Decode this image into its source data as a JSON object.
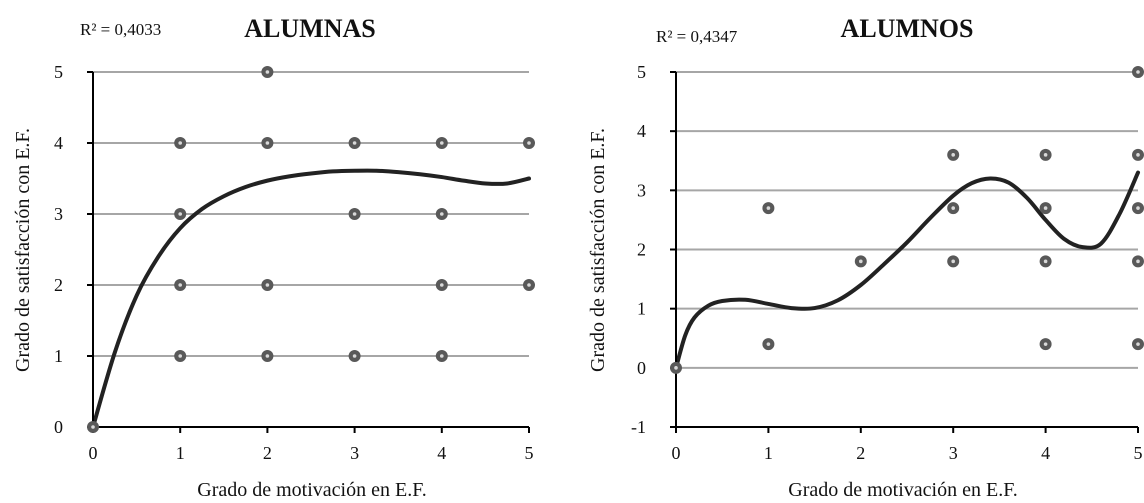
{
  "colors": {
    "grid": "#a6a6a6",
    "axis": "#000000",
    "point_fill": "#595959",
    "point_ring": "#d9d9d9",
    "trend": "#222222"
  },
  "chart_data": [
    {
      "type": "scatter",
      "title": "ALUMNAS",
      "annotation": "R² = 0,4033",
      "xlabel": "Grado de motivación en E.F.",
      "ylabel": "Grado de satisfacción con E.F.",
      "xlim": [
        0,
        5
      ],
      "ylim": [
        0,
        5
      ],
      "x_ticks": [
        "0",
        "1",
        "2",
        "3",
        "4",
        "5"
      ],
      "y_ticks": [
        "0",
        "1",
        "2",
        "3",
        "4",
        "5"
      ],
      "grid": true,
      "points": [
        [
          0,
          0
        ],
        [
          1,
          1
        ],
        [
          1,
          2
        ],
        [
          1,
          3
        ],
        [
          1,
          4
        ],
        [
          2,
          1
        ],
        [
          2,
          2
        ],
        [
          2,
          4
        ],
        [
          2,
          5
        ],
        [
          3,
          1
        ],
        [
          3,
          3
        ],
        [
          3,
          4
        ],
        [
          4,
          1
        ],
        [
          4,
          2
        ],
        [
          4,
          3
        ],
        [
          4,
          4
        ],
        [
          5,
          2
        ],
        [
          5,
          4
        ]
      ],
      "trendline": [
        [
          0,
          0
        ],
        [
          0.25,
          1.05
        ],
        [
          0.5,
          1.85
        ],
        [
          0.75,
          2.4
        ],
        [
          1,
          2.8
        ],
        [
          1.25,
          3.07
        ],
        [
          1.5,
          3.25
        ],
        [
          1.75,
          3.38
        ],
        [
          2,
          3.47
        ],
        [
          2.25,
          3.53
        ],
        [
          2.5,
          3.57
        ],
        [
          2.75,
          3.6
        ],
        [
          3,
          3.61
        ],
        [
          3.25,
          3.61
        ],
        [
          3.5,
          3.59
        ],
        [
          3.75,
          3.56
        ],
        [
          4,
          3.52
        ],
        [
          4.25,
          3.47
        ],
        [
          4.5,
          3.43
        ],
        [
          4.75,
          3.43
        ],
        [
          5,
          3.5
        ]
      ]
    },
    {
      "type": "scatter",
      "title": "ALUMNOS",
      "annotation": "R² = 0,4347",
      "xlabel": "Grado de motivación en E.F.",
      "ylabel": "Grado de satisfacción con E.F.",
      "xlim": [
        0,
        5
      ],
      "ylim": [
        -1,
        5
      ],
      "x_ticks": [
        "0",
        "1",
        "2",
        "3",
        "4",
        "5"
      ],
      "y_ticks": [
        "-1",
        "0",
        "1",
        "2",
        "3",
        "4",
        "5"
      ],
      "grid": true,
      "points": [
        [
          0,
          0
        ],
        [
          1,
          0.4
        ],
        [
          1,
          2.7
        ],
        [
          2,
          1.8
        ],
        [
          3,
          1.8
        ],
        [
          3,
          2.7
        ],
        [
          3,
          3.6
        ],
        [
          4,
          0.4
        ],
        [
          4,
          1.8
        ],
        [
          4,
          2.7
        ],
        [
          4,
          3.6
        ],
        [
          5,
          0.4
        ],
        [
          5,
          1.8
        ],
        [
          5,
          2.7
        ],
        [
          5,
          3.6
        ],
        [
          5,
          5
        ]
      ],
      "trendline": [
        [
          0,
          0
        ],
        [
          0.1,
          0.55
        ],
        [
          0.2,
          0.85
        ],
        [
          0.35,
          1.05
        ],
        [
          0.5,
          1.13
        ],
        [
          0.75,
          1.15
        ],
        [
          1,
          1.08
        ],
        [
          1.25,
          1.01
        ],
        [
          1.5,
          1.01
        ],
        [
          1.75,
          1.14
        ],
        [
          2,
          1.4
        ],
        [
          2.25,
          1.75
        ],
        [
          2.5,
          2.12
        ],
        [
          2.75,
          2.53
        ],
        [
          3,
          2.91
        ],
        [
          3.2,
          3.12
        ],
        [
          3.4,
          3.2
        ],
        [
          3.6,
          3.13
        ],
        [
          3.8,
          2.87
        ],
        [
          4,
          2.5
        ],
        [
          4.2,
          2.18
        ],
        [
          4.4,
          2.04
        ],
        [
          4.6,
          2.1
        ],
        [
          4.8,
          2.6
        ],
        [
          5,
          3.3
        ]
      ]
    }
  ]
}
